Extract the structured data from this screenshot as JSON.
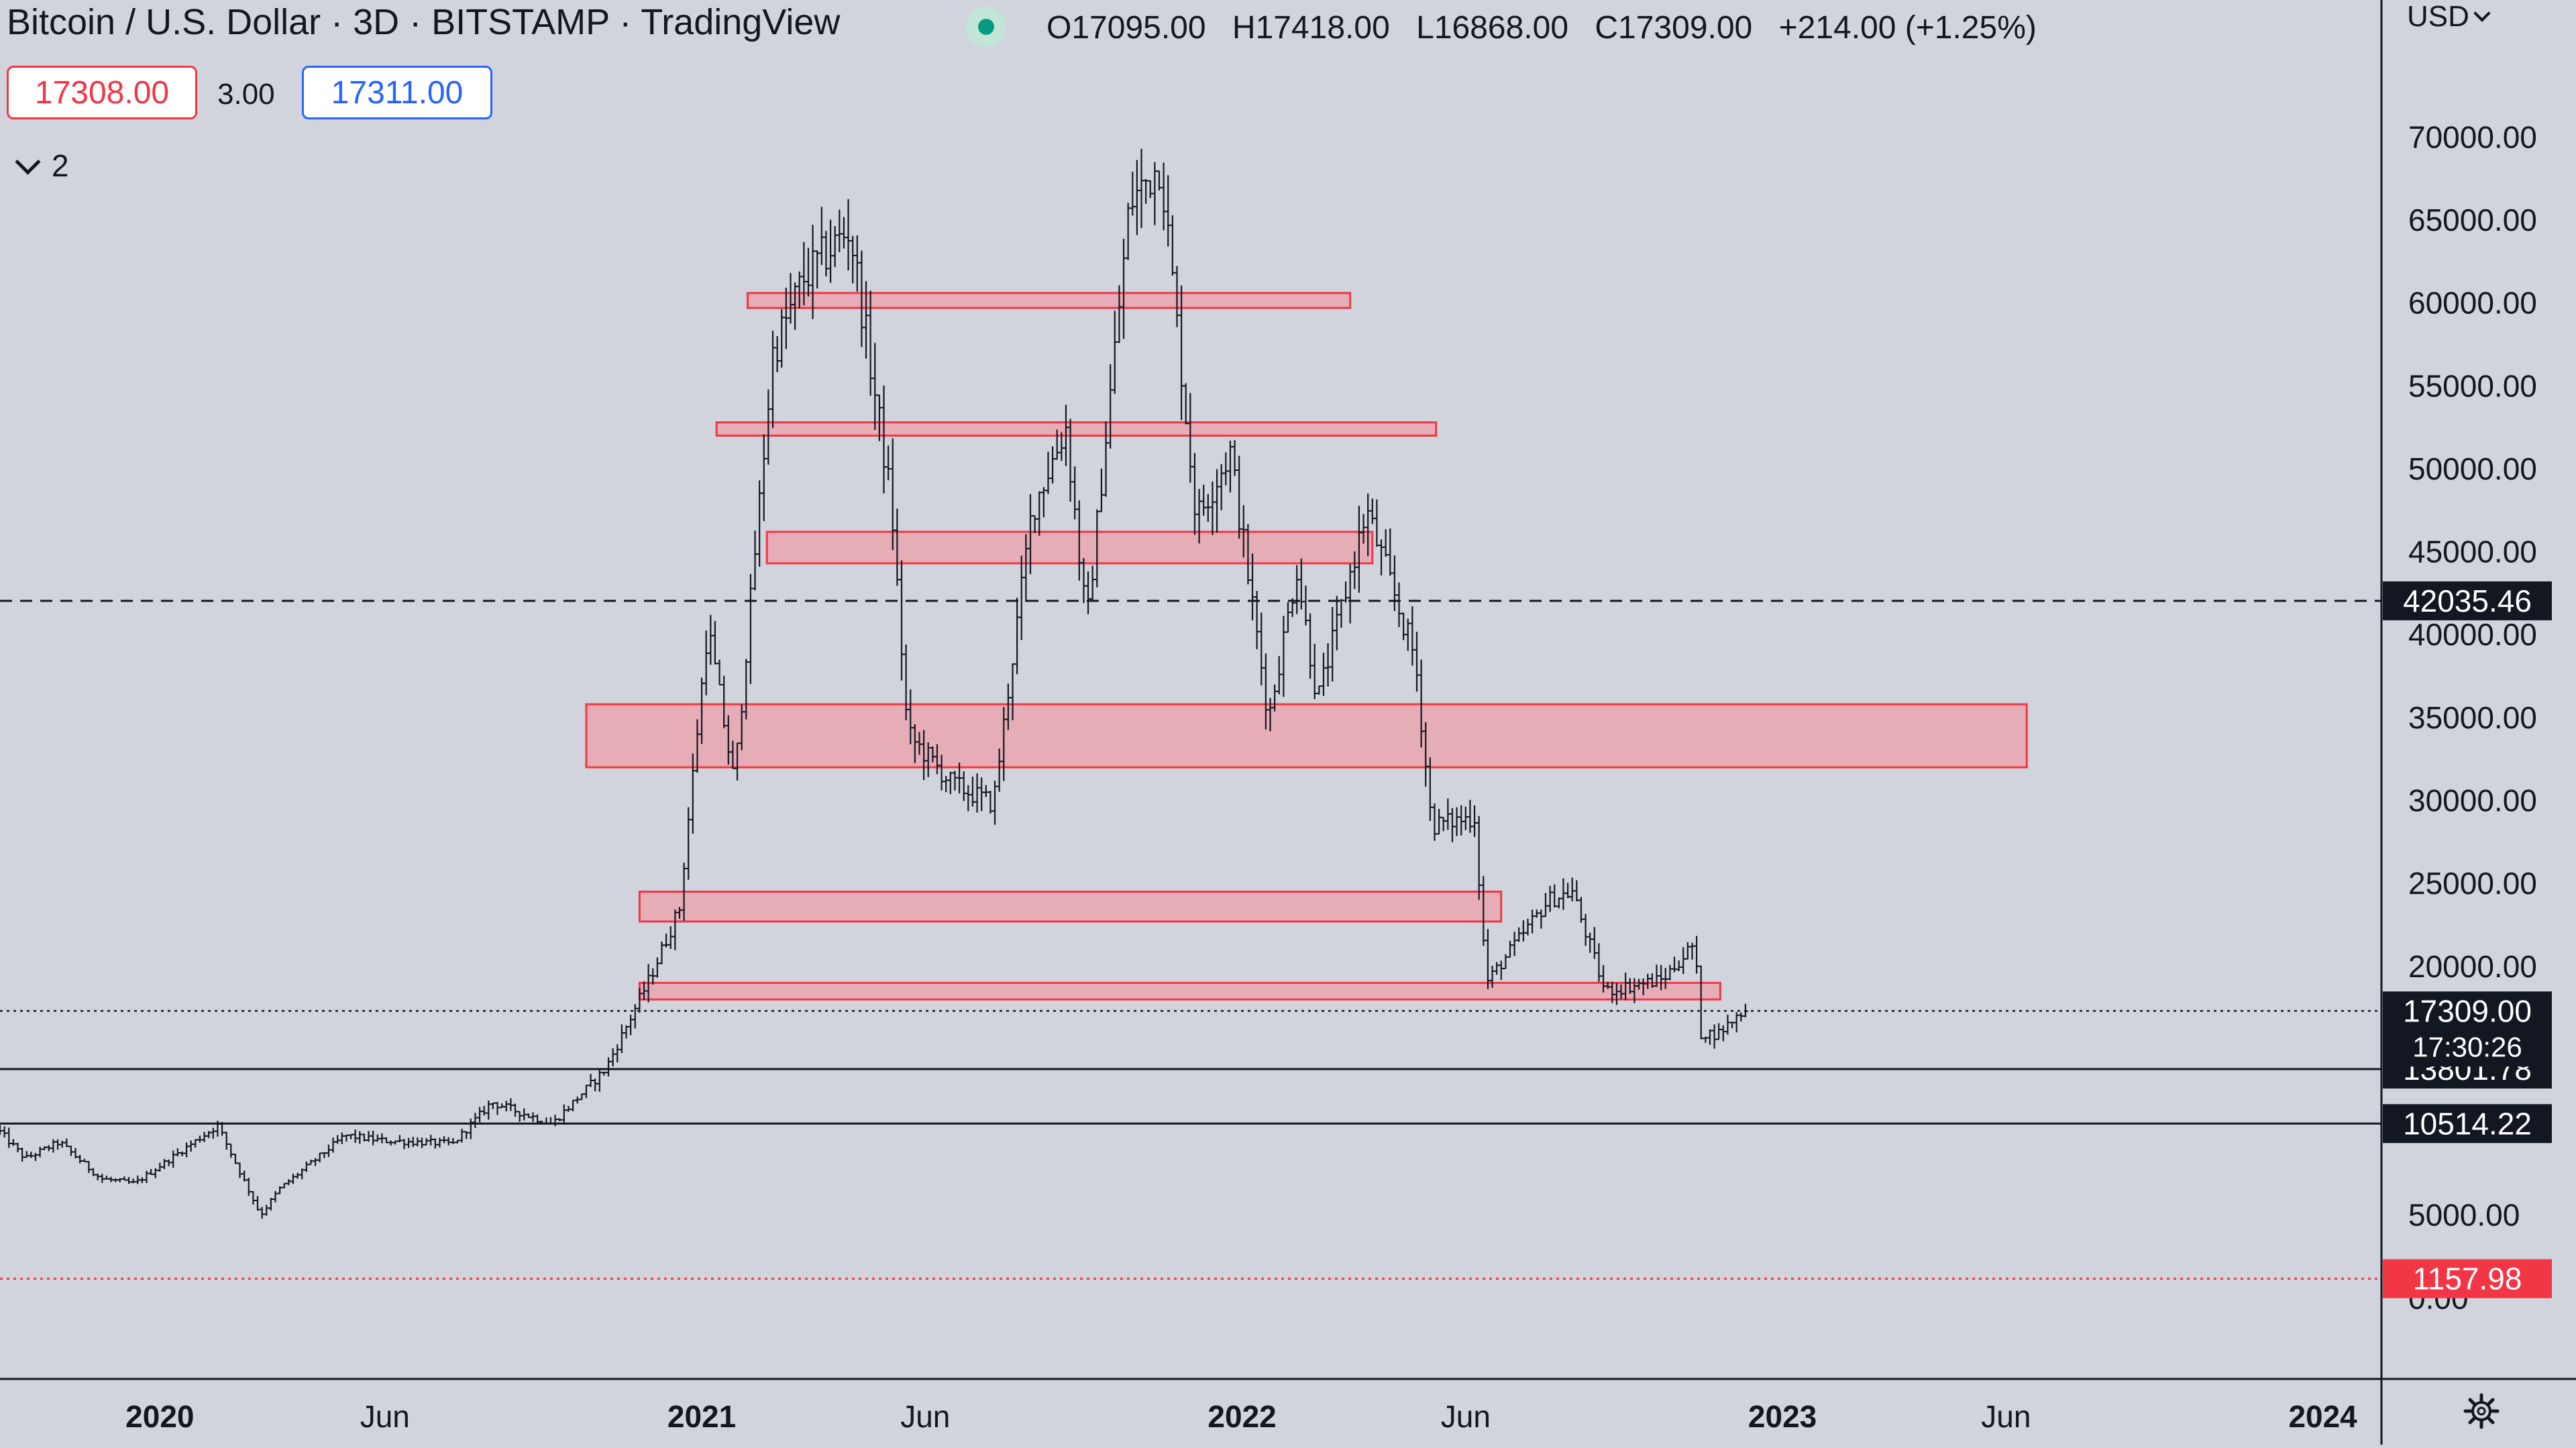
{
  "header": {
    "title": "Bitcoin / U.S. Dollar · 3D · BITSTAMP · TradingView",
    "ohlc": {
      "o_label": "O",
      "o": "17095.00",
      "h_label": "H",
      "h": "17418.00",
      "l_label": "L",
      "l": "16868.00",
      "c_label": "C",
      "c": "17309.00",
      "change": "+214.00 (+1.25%)"
    },
    "status_color": "#089981"
  },
  "trade": {
    "sell_price": "17308.00",
    "spread": "3.00",
    "buy_price": "17311.00"
  },
  "collapse": {
    "label": "2"
  },
  "currency": {
    "label": "USD"
  },
  "icons": {
    "settings": "gear-icon",
    "currency_dropdown": "chevron-down-icon",
    "collapse": "chevron-down-icon",
    "status": "market-status-dot-icon"
  },
  "chart_data": {
    "type": "bar",
    "style": "ohlc",
    "title": "Bitcoin / U.S. Dollar · 3D · BITSTAMP · TradingView",
    "xlabel": "",
    "ylabel": "",
    "y_axis": {
      "ticks": [
        70000,
        65000,
        60000,
        55000,
        50000,
        45000,
        40000,
        35000,
        30000,
        25000,
        20000,
        5000,
        0
      ],
      "tick_labels": [
        "70000.00",
        "65000.00",
        "60000.00",
        "55000.00",
        "50000.00",
        "45000.00",
        "40000.00",
        "35000.00",
        "30000.00",
        "25000.00",
        "20000.00",
        "5000.00",
        "0.00"
      ],
      "ylim": [
        -1000,
        72000
      ],
      "currency": "USD",
      "side": "right"
    },
    "x_axis": {
      "ticks": [
        "2019-09-15",
        "2020-01-01",
        "2020-06-01",
        "2021-01-01",
        "2021-06-01",
        "2022-01-01",
        "2022-06-01",
        "2023-01-01",
        "2023-06-01",
        "2024-01-01"
      ],
      "tick_labels": [
        "",
        "2020",
        "Jun",
        "2021",
        "Jun",
        "2022",
        "Jun",
        "2023",
        "Jun",
        "2024"
      ],
      "bold": [
        false,
        true,
        false,
        true,
        false,
        true,
        false,
        true,
        false,
        true
      ],
      "range": [
        "2019-09-15",
        "2024-06-20"
      ]
    },
    "grid": false,
    "colors": {
      "bars": "#131722",
      "zone_fill": "#f2959f",
      "zone_border": "#f23645",
      "last_price_bg": "#131722",
      "low_marker_bg": "#f23645"
    },
    "zones": [
      {
        "start": "2021-02-01",
        "end": "2022-03-15",
        "low": 59700,
        "high": 60600
      },
      {
        "start": "2021-01-11",
        "end": "2022-05-12",
        "low": 52000,
        "high": 52800
      },
      {
        "start": "2021-02-14",
        "end": "2022-03-30",
        "low": 44300,
        "high": 46200
      },
      {
        "start": "2020-10-15",
        "end": "2023-06-15",
        "low": 32000,
        "high": 35800
      },
      {
        "start": "2020-11-20",
        "end": "2022-06-25",
        "low": 22700,
        "high": 24500
      },
      {
        "start": "2020-11-20",
        "end": "2022-11-20",
        "low": 18000,
        "high": 19000
      }
    ],
    "horizontal_lines": [
      {
        "price": 42035.46,
        "label": "42035.46",
        "style": "dashed",
        "color": "#131722"
      },
      {
        "price": 13801.78,
        "label": "13801.78",
        "style": "solid",
        "color": "#131722"
      },
      {
        "price": 10514.22,
        "label": "10514.22",
        "style": "solid",
        "color": "#131722"
      },
      {
        "price": 1157.98,
        "label": "1157.98",
        "style": "dotted",
        "color": "#f23645"
      }
    ],
    "last_price": {
      "price": 17309.0,
      "label": "17309.00",
      "countdown": "17:30:26",
      "style": "dotted"
    },
    "series_anchors": [
      [
        "2019-09-15",
        10300
      ],
      [
        "2019-10-05",
        8400
      ],
      [
        "2019-10-28",
        9400
      ],
      [
        "2019-11-25",
        7200
      ],
      [
        "2019-12-18",
        6900
      ],
      [
        "2020-02-12",
        10400
      ],
      [
        "2020-03-12",
        5000
      ],
      [
        "2020-03-25",
        6600
      ],
      [
        "2020-05-08",
        9800
      ],
      [
        "2020-06-01",
        9500
      ],
      [
        "2020-07-20",
        9300
      ],
      [
        "2020-08-15",
        11800
      ],
      [
        "2020-09-25",
        10500
      ],
      [
        "2020-10-31",
        13800
      ],
      [
        "2020-11-30",
        19300
      ],
      [
        "2020-12-20",
        23500
      ],
      [
        "2021-01-08",
        40500
      ],
      [
        "2021-01-26",
        31000
      ],
      [
        "2021-02-21",
        57000
      ],
      [
        "2021-03-14",
        61500
      ],
      [
        "2021-04-14",
        64500
      ],
      [
        "2021-05-12",
        48000
      ],
      [
        "2021-05-23",
        34000
      ],
      [
        "2021-06-22",
        31000
      ],
      [
        "2021-07-20",
        29800
      ],
      [
        "2021-08-15",
        47500
      ],
      [
        "2021-09-07",
        52500
      ],
      [
        "2021-09-21",
        40500
      ],
      [
        "2021-10-20",
        66000
      ],
      [
        "2021-11-10",
        68500
      ],
      [
        "2021-12-04",
        47000
      ],
      [
        "2021-12-27",
        51000
      ],
      [
        "2022-01-22",
        35000
      ],
      [
        "2022-02-10",
        44000
      ],
      [
        "2022-02-24",
        36000
      ],
      [
        "2022-03-29",
        47500
      ],
      [
        "2022-05-01",
        38500
      ],
      [
        "2022-05-12",
        28500
      ],
      [
        "2022-06-10",
        29000
      ],
      [
        "2022-06-18",
        19000
      ],
      [
        "2022-07-30",
        24000
      ],
      [
        "2022-08-15",
        24500
      ],
      [
        "2022-09-06",
        18500
      ],
      [
        "2022-10-15",
        19200
      ],
      [
        "2022-11-06",
        21400
      ],
      [
        "2022-11-09",
        16000
      ],
      [
        "2022-11-21",
        15900
      ],
      [
        "2022-12-08",
        17309
      ]
    ]
  }
}
